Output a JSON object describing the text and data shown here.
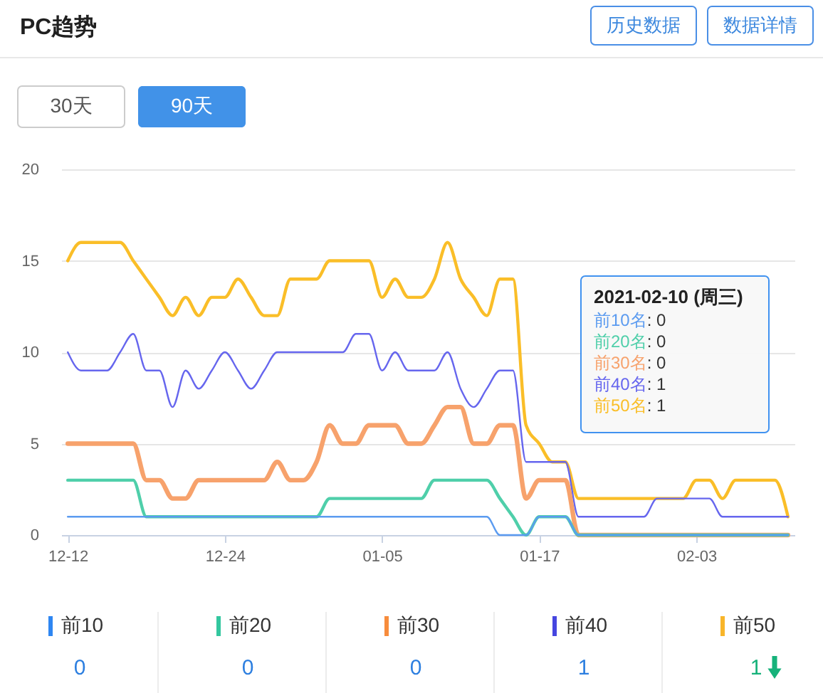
{
  "chart_data": [
    {
      "type": "line",
      "title": "PC趋势",
      "categories": [
        "12-12",
        null,
        null,
        null,
        null,
        null,
        null,
        null,
        null,
        null,
        null,
        null,
        "12-24",
        null,
        null,
        null,
        null,
        null,
        null,
        null,
        null,
        null,
        null,
        null,
        "01-05",
        null,
        null,
        null,
        null,
        null,
        null,
        null,
        null,
        null,
        null,
        null,
        "01-17",
        null,
        null,
        null,
        null,
        null,
        null,
        null,
        null,
        null,
        null,
        null,
        "02-03",
        null,
        null,
        null,
        null,
        null,
        null,
        null
      ],
      "series": [
        {
          "color": "#5b9bf0",
          "values": [
            1,
            1,
            1,
            1,
            1,
            1,
            1,
            1,
            1,
            1,
            1,
            1,
            1,
            1,
            1,
            1,
            1,
            1,
            1,
            1,
            1,
            1,
            1,
            1,
            1,
            1,
            1,
            1,
            1,
            1,
            1,
            1,
            1,
            0,
            0,
            0,
            1,
            1,
            1,
            0,
            0,
            0,
            0,
            0,
            0,
            0,
            0,
            0,
            0,
            0,
            0,
            0,
            0,
            0,
            0,
            0
          ]
        },
        {
          "color": "#4fcfaa",
          "values": [
            3,
            3,
            3,
            3,
            3,
            3,
            1,
            1,
            1,
            1,
            1,
            1,
            1,
            1,
            1,
            1,
            1,
            1,
            1,
            1,
            2,
            2,
            2,
            2,
            2,
            2,
            2,
            2,
            3,
            3,
            3,
            3,
            3,
            2,
            1,
            0,
            1,
            1,
            1,
            0,
            0,
            0,
            0,
            0,
            0,
            0,
            0,
            0,
            0,
            0,
            0,
            0,
            0,
            0,
            0,
            0
          ]
        },
        {
          "color": "#f7a26c",
          "values": [
            5,
            5,
            5,
            5,
            5,
            5,
            3,
            3,
            2,
            2,
            3,
            3,
            3,
            3,
            3,
            3,
            4,
            3,
            3,
            4,
            6,
            5,
            5,
            6,
            6,
            6,
            5,
            5,
            6,
            7,
            7,
            5,
            5,
            6,
            6,
            2,
            3,
            3,
            3,
            0,
            0,
            0,
            0,
            0,
            0,
            0,
            0,
            0,
            0,
            0,
            0,
            0,
            0,
            0,
            0,
            0
          ]
        },
        {
          "color": "#6666ee",
          "values": [
            10,
            9,
            9,
            9,
            10,
            11,
            9,
            9,
            7,
            9,
            8,
            9,
            10,
            9,
            8,
            9,
            10,
            10,
            10,
            10,
            10,
            10,
            11,
            11,
            9,
            10,
            9,
            9,
            9,
            10,
            8,
            7,
            8,
            9,
            9,
            4,
            4,
            4,
            4,
            1,
            1,
            1,
            1,
            1,
            1,
            2,
            2,
            2,
            2,
            2,
            1,
            1,
            1,
            1,
            1,
            1
          ]
        },
        {
          "color": "#fabe28",
          "values": [
            15,
            16,
            16,
            16,
            16,
            15,
            14,
            13,
            12,
            13,
            12,
            13,
            13,
            14,
            13,
            12,
            12,
            14,
            14,
            14,
            15,
            15,
            15,
            15,
            13,
            14,
            13,
            13,
            14,
            16,
            14,
            13,
            12,
            14,
            14,
            6,
            5,
            4,
            4,
            2,
            2,
            2,
            2,
            2,
            2,
            2,
            2,
            2,
            3,
            3,
            2,
            3,
            3,
            3,
            3,
            1
          ]
        }
      ],
      "ylim": [
        0,
        20
      ],
      "yticks": [
        0,
        5,
        10,
        15,
        20
      ],
      "grid": "y",
      "annotations": [
        "历史数据",
        "数据详情",
        "30天",
        "90天",
        "2021-02-10 (周三)",
        "前10名: 0",
        "前20名: 0",
        "前30名: 0",
        "前40名: 1",
        "前50名: 1"
      ]
    },
    {
      "type": "other",
      "categories": [
        "前10",
        "前20",
        "前30",
        "前40",
        "前50"
      ],
      "values": [
        0,
        0,
        0,
        1,
        1
      ],
      "colors": [
        "#2e86f2",
        "#33c79f",
        "#f78c3c",
        "#4646e0",
        "#f8b52a"
      ],
      "data_labels": true
    }
  ]
}
